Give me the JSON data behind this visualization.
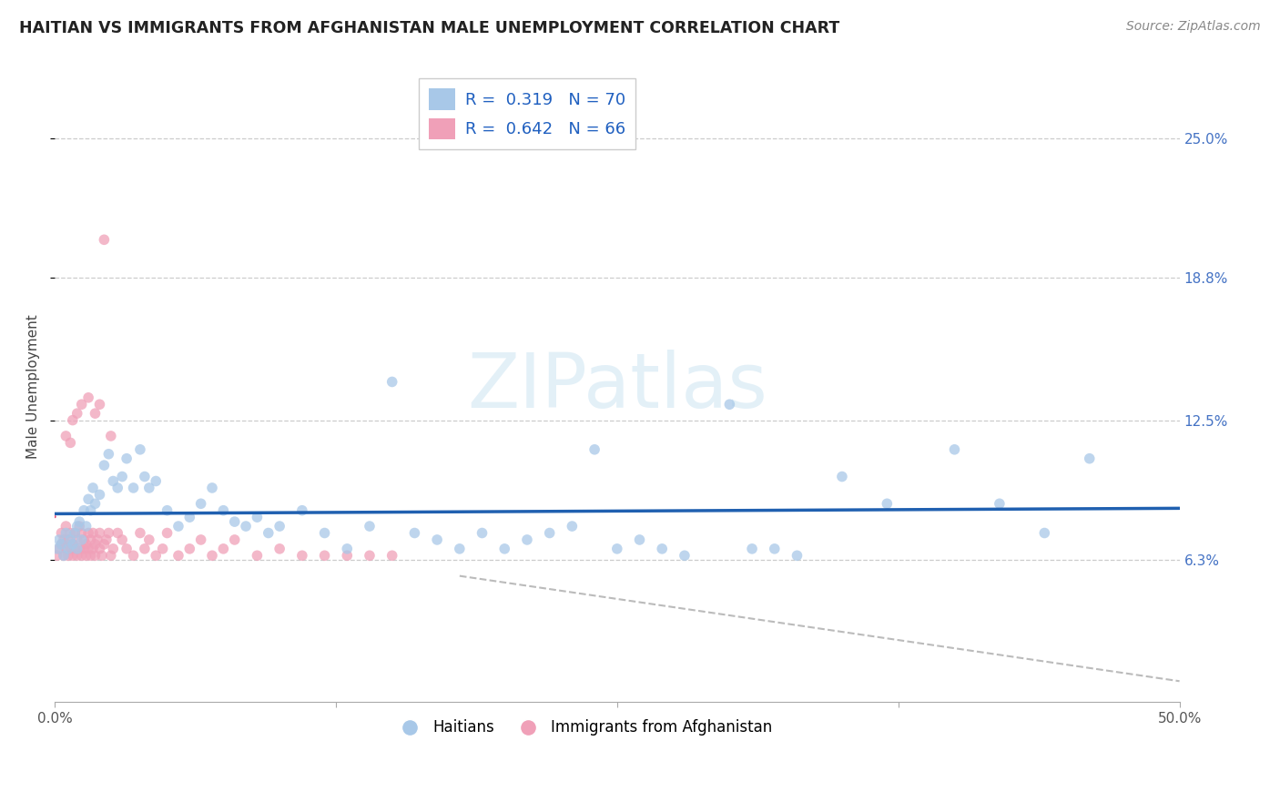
{
  "title": "HAITIAN VS IMMIGRANTS FROM AFGHANISTAN MALE UNEMPLOYMENT CORRELATION CHART",
  "source": "Source: ZipAtlas.com",
  "ylabel": "Male Unemployment",
  "xlim": [
    0.0,
    0.5
  ],
  "ylim": [
    0.0,
    0.28
  ],
  "ytick_labels": [
    "6.3%",
    "12.5%",
    "18.8%",
    "25.0%"
  ],
  "ytick_values": [
    0.063,
    0.125,
    0.188,
    0.25
  ],
  "xtick_labels": [
    "0.0%",
    "50.0%"
  ],
  "xtick_values": [
    0.0,
    0.5
  ],
  "color_blue": "#a8c8e8",
  "color_pink": "#f0a0b8",
  "line_blue": "#2060b0",
  "line_pink": "#e0507a",
  "legend1": "R =  0.319   N = 70",
  "legend2": "R =  0.642   N = 66",
  "legend_blue_label": "Haitians",
  "legend_pink_label": "Immigrants from Afghanistan",
  "watermark": "ZIPatlas",
  "haitians_x": [
    0.001,
    0.002,
    0.003,
    0.004,
    0.005,
    0.006,
    0.007,
    0.008,
    0.009,
    0.01,
    0.01,
    0.011,
    0.012,
    0.013,
    0.014,
    0.015,
    0.016,
    0.017,
    0.018,
    0.02,
    0.022,
    0.024,
    0.026,
    0.028,
    0.03,
    0.032,
    0.035,
    0.038,
    0.04,
    0.042,
    0.045,
    0.05,
    0.055,
    0.06,
    0.065,
    0.07,
    0.075,
    0.08,
    0.085,
    0.09,
    0.095,
    0.1,
    0.11,
    0.12,
    0.13,
    0.14,
    0.15,
    0.16,
    0.17,
    0.18,
    0.19,
    0.2,
    0.21,
    0.22,
    0.23,
    0.24,
    0.25,
    0.26,
    0.27,
    0.28,
    0.3,
    0.31,
    0.32,
    0.33,
    0.35,
    0.37,
    0.4,
    0.42,
    0.44,
    0.46
  ],
  "haitians_y": [
    0.068,
    0.072,
    0.07,
    0.065,
    0.075,
    0.068,
    0.072,
    0.07,
    0.075,
    0.078,
    0.068,
    0.08,
    0.072,
    0.085,
    0.078,
    0.09,
    0.085,
    0.095,
    0.088,
    0.092,
    0.105,
    0.11,
    0.098,
    0.095,
    0.1,
    0.108,
    0.095,
    0.112,
    0.1,
    0.095,
    0.098,
    0.085,
    0.078,
    0.082,
    0.088,
    0.095,
    0.085,
    0.08,
    0.078,
    0.082,
    0.075,
    0.078,
    0.085,
    0.075,
    0.068,
    0.078,
    0.142,
    0.075,
    0.072,
    0.068,
    0.075,
    0.068,
    0.072,
    0.075,
    0.078,
    0.112,
    0.068,
    0.072,
    0.068,
    0.065,
    0.132,
    0.068,
    0.068,
    0.065,
    0.1,
    0.088,
    0.112,
    0.088,
    0.075,
    0.108
  ],
  "afghanistan_x": [
    0.001,
    0.002,
    0.003,
    0.003,
    0.004,
    0.004,
    0.005,
    0.005,
    0.006,
    0.006,
    0.007,
    0.007,
    0.008,
    0.008,
    0.009,
    0.009,
    0.01,
    0.01,
    0.011,
    0.011,
    0.012,
    0.012,
    0.013,
    0.013,
    0.014,
    0.014,
    0.015,
    0.015,
    0.016,
    0.016,
    0.017,
    0.017,
    0.018,
    0.018,
    0.019,
    0.02,
    0.02,
    0.021,
    0.022,
    0.023,
    0.024,
    0.025,
    0.026,
    0.028,
    0.03,
    0.032,
    0.035,
    0.038,
    0.04,
    0.042,
    0.045,
    0.048,
    0.05,
    0.055,
    0.06,
    0.065,
    0.07,
    0.075,
    0.08,
    0.09,
    0.1,
    0.11,
    0.12,
    0.13,
    0.14,
    0.15
  ],
  "afghanistan_y": [
    0.065,
    0.068,
    0.07,
    0.075,
    0.065,
    0.072,
    0.068,
    0.078,
    0.065,
    0.072,
    0.068,
    0.075,
    0.07,
    0.065,
    0.075,
    0.068,
    0.072,
    0.065,
    0.078,
    0.068,
    0.065,
    0.075,
    0.068,
    0.072,
    0.065,
    0.07,
    0.075,
    0.068,
    0.065,
    0.072,
    0.068,
    0.075,
    0.065,
    0.07,
    0.072,
    0.068,
    0.075,
    0.065,
    0.07,
    0.072,
    0.075,
    0.065,
    0.068,
    0.075,
    0.072,
    0.068,
    0.065,
    0.075,
    0.068,
    0.072,
    0.065,
    0.068,
    0.075,
    0.065,
    0.068,
    0.072,
    0.065,
    0.068,
    0.072,
    0.065,
    0.068,
    0.065,
    0.065,
    0.065,
    0.065,
    0.065
  ],
  "afghanistan_outliers_x": [
    0.022,
    0.008,
    0.01,
    0.012,
    0.005,
    0.007,
    0.015,
    0.018,
    0.02,
    0.025
  ],
  "afghanistan_outliers_y": [
    0.205,
    0.125,
    0.128,
    0.132,
    0.118,
    0.115,
    0.135,
    0.128,
    0.132,
    0.118
  ]
}
